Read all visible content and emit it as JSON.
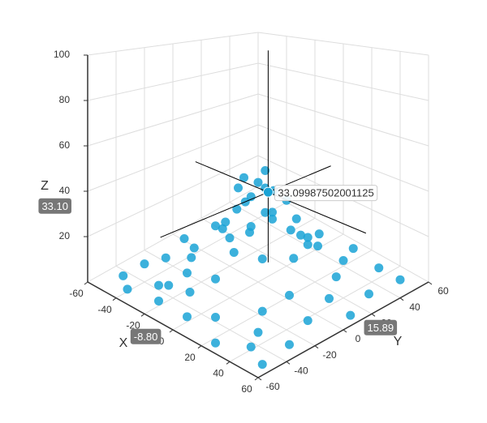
{
  "chart_data": {
    "type": "scatter3d",
    "x_label": "X",
    "y_label": "Y",
    "z_label": "Z",
    "xlim": [
      -60,
      60
    ],
    "ylim": [
      -60,
      60
    ],
    "zlim": [
      0,
      100
    ],
    "xticks": [
      -60,
      -40,
      -20,
      0,
      20,
      40,
      60
    ],
    "yticks": [
      -60,
      -40,
      -20,
      0,
      20,
      40,
      60
    ],
    "zticks": [
      20,
      40,
      60,
      80,
      100
    ],
    "grid": true,
    "color": "#1aa3d6",
    "x": [
      -50,
      -40,
      -30,
      -45,
      -52,
      -48,
      -40,
      -20,
      -10,
      0,
      12,
      25,
      40,
      52,
      45,
      55,
      48,
      35,
      15,
      -5,
      -25,
      -35,
      -30,
      -32,
      -22,
      -15,
      -20,
      -10,
      0,
      10,
      20,
      25,
      18,
      5,
      -5,
      0,
      8,
      -8,
      10,
      -12,
      3,
      -3,
      15,
      -18,
      28,
      30,
      -25,
      35,
      -40,
      40,
      22,
      -15,
      0,
      32,
      -28,
      12,
      -50,
      50,
      -55,
      55
    ],
    "y": [
      -45,
      -52,
      -40,
      -20,
      0,
      25,
      45,
      -50,
      -38,
      -50,
      -42,
      -55,
      -45,
      -30,
      -10,
      10,
      30,
      50,
      52,
      48,
      52,
      30,
      10,
      -15,
      -28,
      -10,
      5,
      20,
      30,
      25,
      15,
      0,
      -15,
      -22,
      -5,
      5,
      -3,
      8,
      10,
      -2,
      -12,
      14,
      -5,
      -12,
      -25,
      25,
      -38,
      -35,
      -5,
      10,
      38,
      38,
      -30,
      -10,
      22,
      30,
      -30,
      50,
      50,
      -52
    ],
    "z": [
      1,
      1,
      2,
      2,
      1,
      1,
      1,
      2,
      5,
      2,
      3,
      1,
      1,
      1,
      2,
      1,
      1,
      1,
      2,
      3,
      1,
      2,
      6,
      5,
      6,
      22,
      25,
      22,
      11,
      15,
      18,
      18,
      20,
      21,
      46,
      48,
      44,
      40,
      36,
      39,
      39,
      36,
      33,
      23,
      5,
      4,
      3,
      2,
      3,
      3,
      4,
      5,
      11,
      8,
      5,
      10,
      1,
      1,
      1,
      1
    ],
    "highlight": {
      "x": -8.8,
      "y": 15.89,
      "z": 33.09987502001125,
      "labels": {
        "x": "-8.80",
        "y": "15.89",
        "z": "33.10"
      }
    }
  }
}
